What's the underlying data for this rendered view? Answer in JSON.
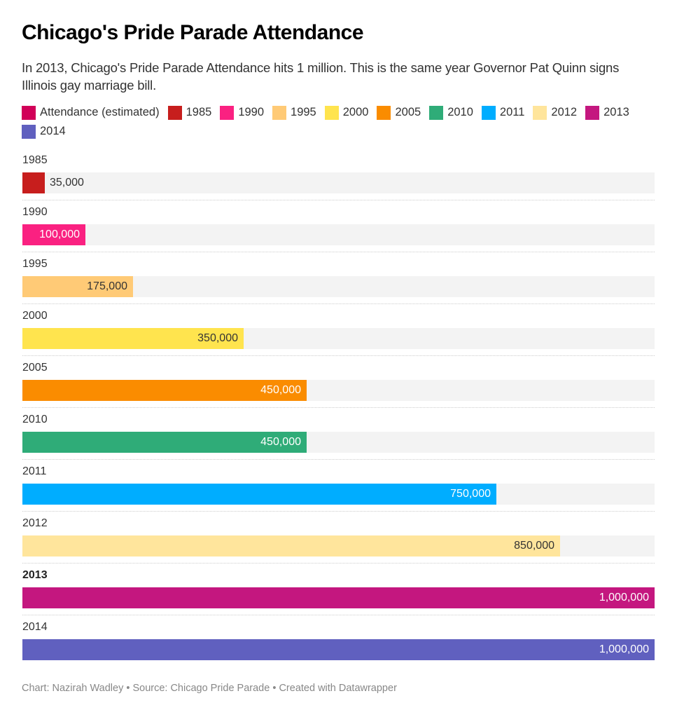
{
  "header": {
    "title": "Chicago's Pride Parade Attendance",
    "subtitle": "In 2013, Chicago's Pride Parade Attendance hits 1 million. This is the same year Governor Pat Quinn signs Illinois gay marriage bill."
  },
  "legend": [
    {
      "label": "Attendance (estimated)",
      "color": "#d10058"
    },
    {
      "label": "1985",
      "color": "#c71e1d"
    },
    {
      "label": "1990",
      "color": "#fa2181"
    },
    {
      "label": "1995",
      "color": "#ffca76"
    },
    {
      "label": "2000",
      "color": "#ffe44e"
    },
    {
      "label": "2005",
      "color": "#fa8c00"
    },
    {
      "label": "2010",
      "color": "#2fac78"
    },
    {
      "label": "2011",
      "color": "#00adff"
    },
    {
      "label": "2012",
      "color": "#ffe59c"
    },
    {
      "label": "2013",
      "color": "#c4177f"
    },
    {
      "label": "2014",
      "color": "#6060bf"
    }
  ],
  "chart_data": {
    "type": "bar",
    "orientation": "horizontal",
    "title": "Chicago's Pride Parade Attendance",
    "subtitle": "In 2013, Chicago's Pride Parade Attendance hits 1 million. This is the same year Governor Pat Quinn signs Illinois gay marriage bill.",
    "xlabel": "",
    "ylabel": "",
    "xlim": [
      0,
      1000000
    ],
    "grid": false,
    "legend_position": "top",
    "series_name": "Attendance (estimated)",
    "categories": [
      "1985",
      "1990",
      "1995",
      "2000",
      "2005",
      "2010",
      "2011",
      "2012",
      "2013",
      "2014"
    ],
    "values": [
      35000,
      100000,
      175000,
      350000,
      450000,
      450000,
      750000,
      850000,
      1000000,
      1000000
    ],
    "value_labels": [
      "35,000",
      "100,000",
      "175,000",
      "350,000",
      "450,000",
      "450,000",
      "750,000",
      "850,000",
      "1,000,000",
      "1,000,000"
    ],
    "colors": [
      "#c71e1d",
      "#fa2181",
      "#ffca76",
      "#ffe44e",
      "#fa8c00",
      "#2fac78",
      "#00adff",
      "#ffe59c",
      "#c4177f",
      "#6060bf"
    ],
    "label_colors": [
      "#333333",
      "#ffffff",
      "#333333",
      "#333333",
      "#ffffff",
      "#ffffff",
      "#ffffff",
      "#333333",
      "#ffffff",
      "#ffffff"
    ],
    "highlighted": [
      "2013"
    ]
  },
  "footer": {
    "text": "Chart: Nazirah Wadley • Source: Chicago Pride Parade • Created with Datawrapper"
  }
}
